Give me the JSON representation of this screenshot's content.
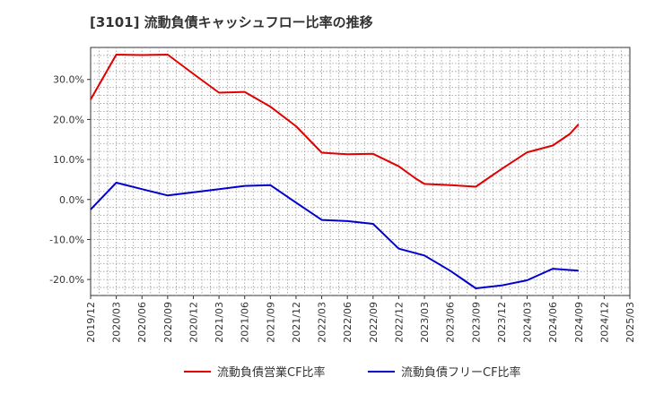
{
  "chart_data": {
    "type": "line",
    "title": "[3101]  流動負債キャッシュフロー比率の推移",
    "xlabel": "",
    "ylabel": "",
    "ylim": [
      -24,
      38
    ],
    "yticks": [
      -20,
      -10,
      0,
      10,
      20,
      30
    ],
    "ytick_labels": [
      "-20.0%",
      "-10.0%",
      "0.0%",
      "10.0%",
      "20.0%",
      "30.0%"
    ],
    "x_ticks": [
      "2019/12",
      "2020/03",
      "2020/06",
      "2020/09",
      "2020/12",
      "2021/03",
      "2021/06",
      "2021/09",
      "2021/12",
      "2022/03",
      "2022/06",
      "2022/09",
      "2022/12",
      "2023/03",
      "2023/06",
      "2023/09",
      "2023/12",
      "2024/03",
      "2024/06",
      "2024/09",
      "2024/12",
      "2025/03"
    ],
    "x_minor_per_major": 3,
    "grid": true,
    "legend_position": "bottom",
    "series": [
      {
        "name": "流動負債営業CF比率",
        "color": "#e00000",
        "points": [
          [
            "2019/12",
            25.0
          ],
          [
            "2020/03",
            36.2
          ],
          [
            "2020/06",
            36.1
          ],
          [
            "2020/09",
            36.2
          ],
          [
            "2020/12",
            31.4
          ],
          [
            "2021/03",
            26.7
          ],
          [
            "2021/06",
            26.9
          ],
          [
            "2021/09",
            23.2
          ],
          [
            "2021/12",
            18.3
          ],
          [
            "2022/03",
            11.7
          ],
          [
            "2022/06",
            11.3
          ],
          [
            "2022/09",
            11.4
          ],
          [
            "2022/12",
            8.3
          ],
          [
            "2023/02",
            5.2
          ],
          [
            "2023/03",
            3.9
          ],
          [
            "2023/06",
            3.6
          ],
          [
            "2023/09",
            3.2
          ],
          [
            "2023/12",
            7.6
          ],
          [
            "2024/03",
            11.8
          ],
          [
            "2024/06",
            13.5
          ],
          [
            "2024/08",
            16.4
          ],
          [
            "2024/09",
            18.8
          ]
        ]
      },
      {
        "name": "流動負債フリーCF比率",
        "color": "#0000cc",
        "points": [
          [
            "2019/12",
            -2.5
          ],
          [
            "2020/03",
            4.2
          ],
          [
            "2020/06",
            2.6
          ],
          [
            "2020/09",
            1.0
          ],
          [
            "2020/12",
            1.8
          ],
          [
            "2021/03",
            2.6
          ],
          [
            "2021/06",
            3.4
          ],
          [
            "2021/09",
            3.6
          ],
          [
            "2021/12",
            -0.8
          ],
          [
            "2022/03",
            -5.1
          ],
          [
            "2022/06",
            -5.4
          ],
          [
            "2022/09",
            -6.1
          ],
          [
            "2022/12",
            -12.3
          ],
          [
            "2023/03",
            -14.0
          ],
          [
            "2023/06",
            -17.8
          ],
          [
            "2023/09",
            -22.2
          ],
          [
            "2023/12",
            -21.5
          ],
          [
            "2024/03",
            -20.2
          ],
          [
            "2024/06",
            -17.3
          ],
          [
            "2024/09",
            -17.8
          ]
        ]
      }
    ]
  }
}
